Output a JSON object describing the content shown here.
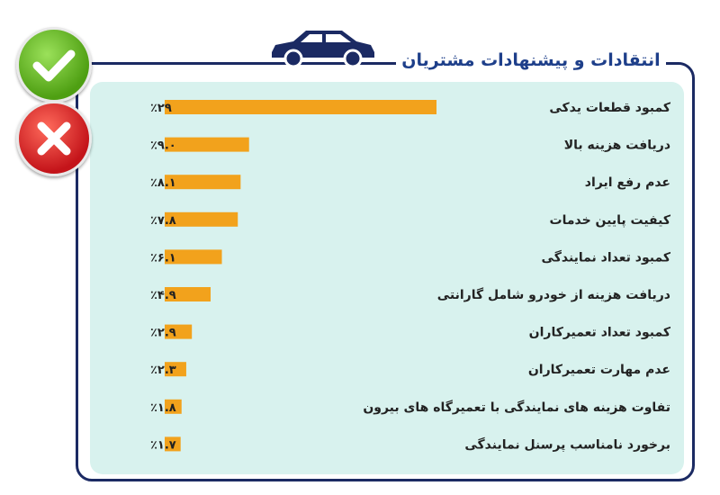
{
  "title": "انتقادات و پیشنهادات مشتریان",
  "icons": [
    "car-icon",
    "check-icon",
    "cross-icon"
  ],
  "colors": {
    "bar": "#f2a21c",
    "panel": "#d8f2ee",
    "frame": "#1b2a63",
    "title": "#1e3f8a"
  },
  "chart_data": {
    "type": "bar",
    "orientation": "horizontal",
    "categories": [
      "کمبود قطعات یدکی",
      "دریافت هزینه بالا",
      "عدم رفع ایراد",
      "کیفیت پایین خدمات",
      "کمبود تعداد نمایندگی",
      "دریافت هزینه از خودرو شامل گارانتی",
      "کمبود تعداد تعمیرکاران",
      "عدم مهارت تعمیرکاران",
      "تفاوت هزینه های نمایندگی با تعمیرگاه های بیرون",
      "برخورد نامناسب پرسنل نمایندگی"
    ],
    "values": [
      29,
      9.0,
      8.1,
      7.8,
      6.1,
      4.9,
      2.9,
      2.3,
      1.8,
      1.7
    ],
    "value_labels": [
      "٪۲۹",
      "٪۹.۰",
      "٪۸.۱",
      "٪۷.۸",
      "٪۶.۱",
      "٪۴.۹",
      "٪۲.۹",
      "٪۲.۳",
      "٪۱.۸",
      "٪۱.۷"
    ],
    "unit": "%",
    "grid": false,
    "legend": "none"
  }
}
